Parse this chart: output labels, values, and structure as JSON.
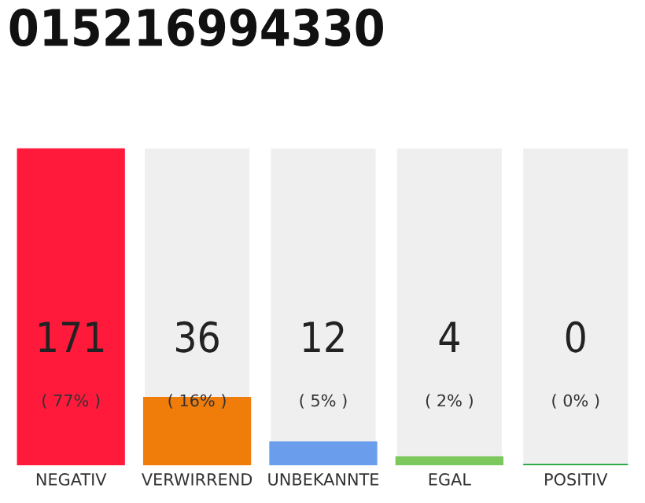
{
  "chart_data": {
    "type": "bar",
    "title": "015216994330",
    "categories": [
      "NEGATIV",
      "VERWIRREND",
      "UNBEKANNTE",
      "EGAL",
      "POSITIV"
    ],
    "values": [
      171,
      36,
      12,
      4,
      0
    ],
    "colors": [
      "#ff1a3c",
      "#f07d0a",
      "#6a9eec",
      "#7cc85c",
      "#2eaa48"
    ],
    "ylim": [
      0,
      171
    ],
    "data_labels": true,
    "annotations": [
      "( 77% )",
      "( 16% )",
      "( 5% )",
      "( 2% )",
      "( 0% )"
    ],
    "grid": false,
    "legend": false,
    "tick_labels": "x"
  }
}
